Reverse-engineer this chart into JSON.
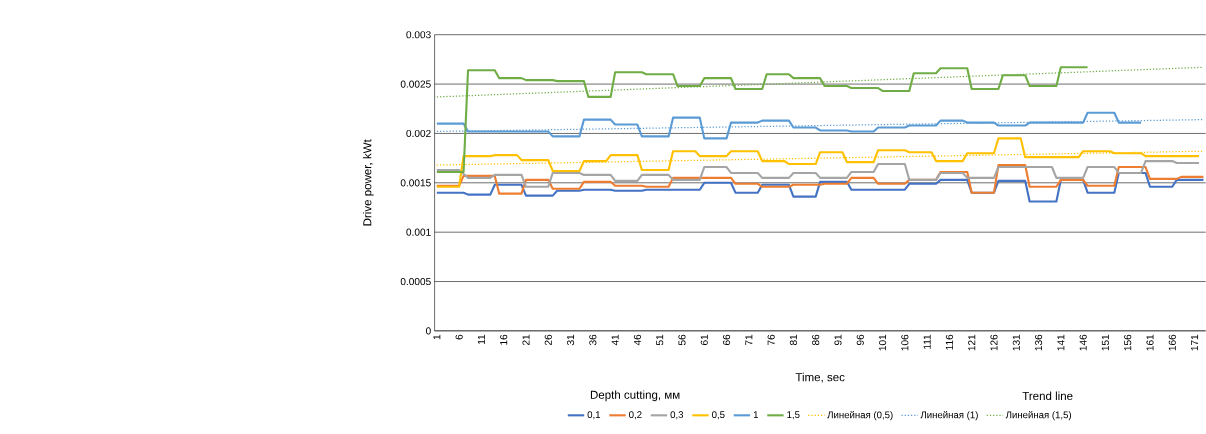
{
  "chart_data": {
    "type": "line",
    "xlabel": "Time, sec",
    "ylabel": "Drive power, kWt",
    "annotations": [
      "Depth cutting, мм",
      "Trend line"
    ],
    "xlim": [
      0.5,
      173.5
    ],
    "xticks": [
      1,
      6,
      11,
      16,
      21,
      26,
      31,
      36,
      41,
      46,
      51,
      56,
      61,
      66,
      71,
      76,
      81,
      86,
      91,
      96,
      101,
      106,
      111,
      116,
      121,
      126,
      131,
      136,
      141,
      146,
      151,
      156,
      161,
      166,
      171
    ],
    "ylim": [
      0,
      0.003
    ],
    "yticks": [
      0,
      0.0005,
      0.001,
      0.0015,
      0.002,
      0.0025,
      0.003
    ],
    "grid": "y",
    "legend": "bottom",
    "series": [
      {
        "name": "0,1",
        "color": "#4472c4",
        "x": [
          1,
          7,
          8,
          13,
          14,
          20,
          21,
          27,
          28,
          33,
          34,
          40,
          41,
          47,
          48,
          60,
          61,
          67,
          68,
          73,
          74,
          80,
          81,
          86,
          87,
          93,
          94,
          106,
          107,
          113,
          114,
          120,
          121,
          126,
          127,
          133,
          134,
          140,
          141,
          146,
          147,
          153,
          154,
          160,
          161,
          166,
          167,
          173
        ],
        "values": [
          0.0014,
          0.0014,
          0.00138,
          0.00138,
          0.00148,
          0.00148,
          0.00137,
          0.00137,
          0.00142,
          0.00142,
          0.00143,
          0.00143,
          0.00142,
          0.00142,
          0.00143,
          0.00143,
          0.0015,
          0.0015,
          0.0014,
          0.0014,
          0.00148,
          0.00148,
          0.00136,
          0.00136,
          0.00151,
          0.00151,
          0.00143,
          0.00143,
          0.00149,
          0.00149,
          0.00153,
          0.00153,
          0.0014,
          0.0014,
          0.00152,
          0.00152,
          0.00131,
          0.00131,
          0.00153,
          0.00153,
          0.0014,
          0.0014,
          0.0016,
          0.0016,
          0.00146,
          0.00146,
          0.00153,
          0.00153
        ]
      },
      {
        "name": "0,2",
        "color": "#ed7d31",
        "x": [
          1,
          6,
          7,
          14,
          15,
          20,
          21,
          26,
          27,
          33,
          34,
          40,
          41,
          47,
          48,
          53,
          54,
          67,
          68,
          73,
          74,
          80,
          81,
          87,
          88,
          93,
          94,
          99,
          100,
          106,
          107,
          113,
          114,
          120,
          121,
          126,
          127,
          133,
          134,
          140,
          141,
          146,
          147,
          153,
          154,
          160,
          161,
          167,
          168,
          173
        ],
        "values": [
          0.00147,
          0.00147,
          0.00157,
          0.00157,
          0.00139,
          0.00139,
          0.00153,
          0.00153,
          0.00144,
          0.00144,
          0.00151,
          0.00151,
          0.00147,
          0.00147,
          0.00146,
          0.00146,
          0.00155,
          0.00155,
          0.00149,
          0.00149,
          0.00146,
          0.00146,
          0.00148,
          0.00148,
          0.00149,
          0.00149,
          0.00155,
          0.00155,
          0.00149,
          0.00149,
          0.00153,
          0.00153,
          0.00161,
          0.00161,
          0.0014,
          0.0014,
          0.00168,
          0.00168,
          0.00146,
          0.00146,
          0.00153,
          0.00153,
          0.00147,
          0.00147,
          0.00166,
          0.00166,
          0.00154,
          0.00154,
          0.00156,
          0.00156
        ]
      },
      {
        "name": "0,3",
        "color": "#a5a5a5",
        "x": [
          1,
          6,
          8,
          13,
          14,
          20,
          21,
          26,
          27,
          33,
          34,
          40,
          41,
          46,
          47,
          53,
          54,
          60,
          61,
          66,
          67,
          73,
          74,
          80,
          81,
          86,
          87,
          93,
          94,
          99,
          100,
          106,
          107,
          113,
          114,
          119,
          120,
          126,
          127,
          139,
          140,
          146,
          147,
          153,
          154,
          159,
          160,
          166,
          167,
          172
        ],
        "values": [
          0.00163,
          0.00163,
          0.00155,
          0.00155,
          0.00158,
          0.00158,
          0.00146,
          0.00146,
          0.0016,
          0.0016,
          0.00158,
          0.00158,
          0.00152,
          0.00152,
          0.00158,
          0.00158,
          0.00153,
          0.00153,
          0.00166,
          0.00166,
          0.0016,
          0.0016,
          0.00155,
          0.00155,
          0.0016,
          0.0016,
          0.00155,
          0.00155,
          0.00161,
          0.00161,
          0.00169,
          0.00169,
          0.00153,
          0.00153,
          0.0016,
          0.0016,
          0.00155,
          0.00155,
          0.00166,
          0.00166,
          0.00155,
          0.00155,
          0.00166,
          0.00166,
          0.0016,
          0.0016,
          0.00172,
          0.00172,
          0.0017,
          0.0017
        ]
      },
      {
        "name": "0,5",
        "color": "#ffc000",
        "x": [
          1,
          6,
          7,
          13,
          14,
          19,
          20,
          26,
          27,
          33,
          34,
          39,
          40,
          46,
          47,
          53,
          54,
          59,
          60,
          66,
          67,
          73,
          74,
          79,
          80,
          86,
          87,
          92,
          93,
          99,
          100,
          106,
          107,
          112,
          113,
          119,
          120,
          126,
          127,
          132,
          133,
          145,
          146,
          152,
          153,
          159,
          160,
          172
        ],
        "values": [
          0.00146,
          0.00146,
          0.00177,
          0.00177,
          0.00178,
          0.00178,
          0.00173,
          0.00173,
          0.00162,
          0.00162,
          0.00172,
          0.00172,
          0.00178,
          0.00178,
          0.00163,
          0.00163,
          0.00182,
          0.00182,
          0.00177,
          0.00177,
          0.00182,
          0.00182,
          0.00172,
          0.00172,
          0.00169,
          0.00169,
          0.00181,
          0.00181,
          0.00171,
          0.00171,
          0.00183,
          0.00183,
          0.00181,
          0.00181,
          0.00172,
          0.00172,
          0.0018,
          0.0018,
          0.00195,
          0.00195,
          0.00176,
          0.00176,
          0.00182,
          0.00182,
          0.0018,
          0.0018,
          0.00177,
          0.00177
        ]
      },
      {
        "name": "1",
        "color": "#5b9bd5",
        "x": [
          1,
          7,
          8,
          26,
          27,
          33,
          34,
          40,
          41,
          46,
          47,
          53,
          54,
          60,
          61,
          66,
          67,
          73,
          74,
          80,
          81,
          86,
          87,
          93,
          94,
          99,
          100,
          106,
          107,
          113,
          114,
          119,
          120,
          126,
          127,
          133,
          134,
          146,
          147,
          153,
          154,
          159
        ],
        "values": [
          0.0021,
          0.0021,
          0.00202,
          0.00202,
          0.00197,
          0.00197,
          0.00214,
          0.00214,
          0.00209,
          0.00209,
          0.00197,
          0.00197,
          0.00216,
          0.00216,
          0.00195,
          0.00195,
          0.00211,
          0.00211,
          0.00213,
          0.00213,
          0.00206,
          0.00206,
          0.00203,
          0.00203,
          0.00202,
          0.00202,
          0.00206,
          0.00206,
          0.00208,
          0.00208,
          0.00213,
          0.00213,
          0.00211,
          0.00211,
          0.00208,
          0.00208,
          0.00211,
          0.00211,
          0.00221,
          0.00221,
          0.00211,
          0.00211
        ]
      },
      {
        "name": "1,5",
        "color": "#70ad47",
        "x": [
          1,
          7,
          8,
          14,
          15,
          20,
          21,
          27,
          28,
          34,
          35,
          40,
          41,
          47,
          48,
          54,
          55,
          60,
          61,
          67,
          68,
          74,
          75,
          80,
          81,
          87,
          88,
          93,
          94,
          100,
          101,
          107,
          108,
          113,
          114,
          120,
          121,
          127,
          128,
          133,
          134,
          140,
          141,
          147
        ],
        "values": [
          0.00161,
          0.00161,
          0.00264,
          0.00264,
          0.00256,
          0.00256,
          0.00254,
          0.00254,
          0.00253,
          0.00253,
          0.00237,
          0.00237,
          0.00262,
          0.00262,
          0.0026,
          0.0026,
          0.00248,
          0.00248,
          0.00256,
          0.00256,
          0.00245,
          0.00245,
          0.0026,
          0.0026,
          0.00256,
          0.00256,
          0.00248,
          0.00248,
          0.00246,
          0.00246,
          0.00243,
          0.00243,
          0.00261,
          0.00261,
          0.00266,
          0.00266,
          0.00245,
          0.00245,
          0.00259,
          0.00259,
          0.00248,
          0.00248,
          0.00267,
          0.00267
        ]
      },
      {
        "name": "Линейная (0,5)",
        "color": "#ffc000",
        "line_style": "dotted",
        "x": [
          1,
          173
        ],
        "values": [
          0.00168,
          0.00182
        ]
      },
      {
        "name": "Линейная (1)",
        "color": "#5b9bd5",
        "line_style": "dotted",
        "x": [
          1,
          173
        ],
        "values": [
          0.00202,
          0.00214
        ]
      },
      {
        "name": "Линейная (1,5)",
        "color": "#70ad47",
        "line_style": "dotted",
        "x": [
          1,
          173
        ],
        "values": [
          0.00237,
          0.00267
        ]
      }
    ]
  }
}
